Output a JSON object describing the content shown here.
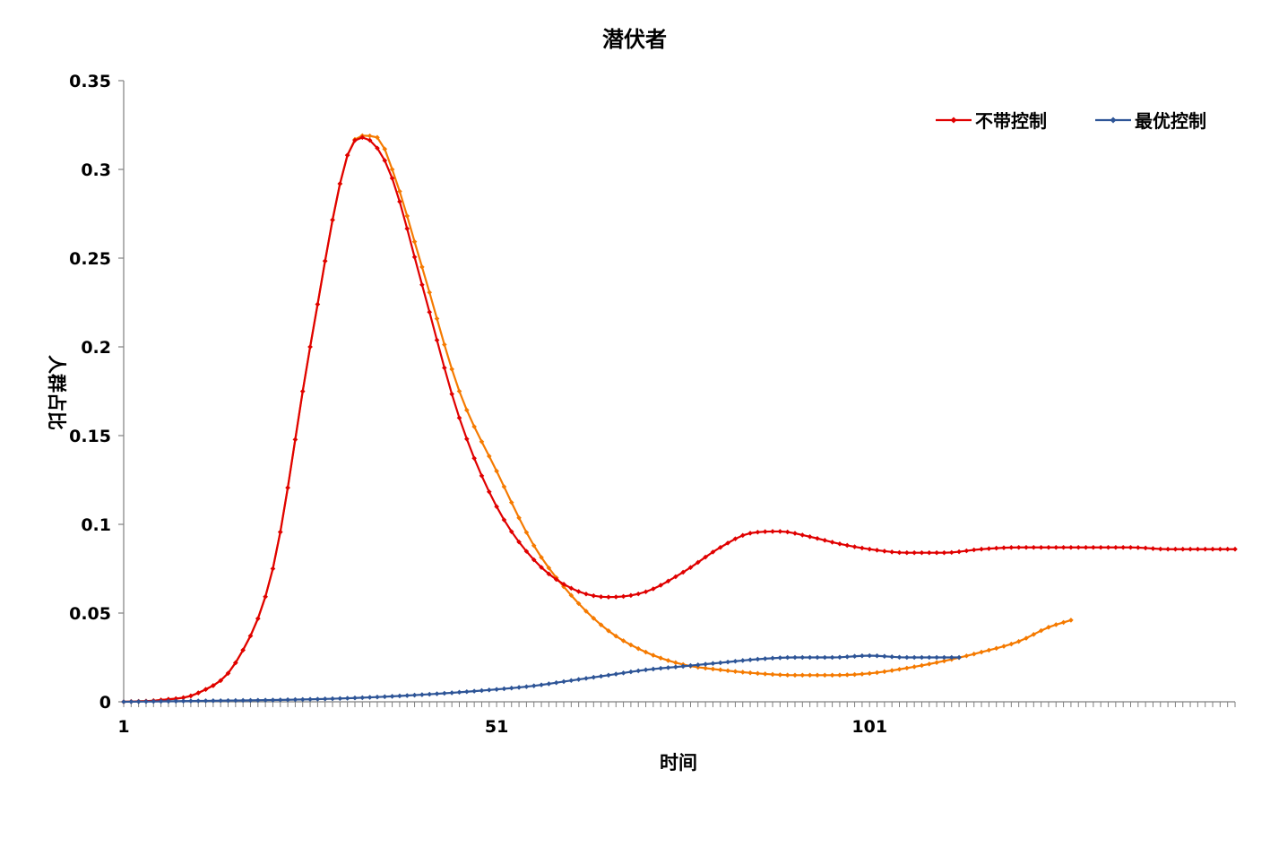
{
  "chart_data": {
    "type": "line",
    "title": "潜伏者",
    "xlabel": "时间",
    "ylabel": "人群占比",
    "xlim": [
      1,
      150
    ],
    "ylim": [
      0,
      0.35
    ],
    "x_tick_labels": [
      {
        "value": 1,
        "label": "1"
      },
      {
        "value": 51,
        "label": "51"
      },
      {
        "value": 101,
        "label": "101"
      }
    ],
    "y_tick_labels": [
      {
        "value": 0,
        "label": "0"
      },
      {
        "value": 0.05,
        "label": "0.05"
      },
      {
        "value": 0.1,
        "label": "0.1"
      },
      {
        "value": 0.15,
        "label": "0.15"
      },
      {
        "value": 0.2,
        "label": "0.2"
      },
      {
        "value": 0.25,
        "label": "0.25"
      },
      {
        "value": 0.3,
        "label": "0.3"
      },
      {
        "value": 0.35,
        "label": "0.35"
      }
    ],
    "grid": false,
    "legend_position": "top-right",
    "legend": [
      "不带控制",
      "最优控制"
    ],
    "series": [
      {
        "name": "不带控制",
        "color": "#E00000",
        "x": [
          1,
          6,
          11,
          16,
          21,
          26,
          31,
          33,
          35,
          37,
          41,
          46,
          51,
          56,
          61,
          66,
          71,
          76,
          81,
          85,
          89,
          93,
          97,
          101,
          106,
          111,
          116,
          121,
          126,
          131,
          136,
          141,
          146,
          150
        ],
        "y": [
          0,
          0.001,
          0.005,
          0.022,
          0.075,
          0.2,
          0.308,
          0.318,
          0.312,
          0.295,
          0.235,
          0.16,
          0.11,
          0.08,
          0.064,
          0.059,
          0.062,
          0.073,
          0.087,
          0.095,
          0.096,
          0.093,
          0.089,
          0.086,
          0.084,
          0.084,
          0.086,
          0.087,
          0.087,
          0.087,
          0.087,
          0.086,
          0.086,
          0.086
        ]
      },
      {
        "name": "最优控制",
        "color": "#2E5597",
        "x": [
          1,
          11,
          21,
          31,
          41,
          51,
          56,
          61,
          66,
          71,
          76,
          81,
          86,
          91,
          96,
          101,
          106,
          113
        ],
        "y": [
          0,
          0.0005,
          0.001,
          0.002,
          0.004,
          0.007,
          0.009,
          0.012,
          0.015,
          0.018,
          0.02,
          0.022,
          0.024,
          0.025,
          0.025,
          0.026,
          0.025,
          0.025
        ]
      },
      {
        "name": "",
        "color": "#F57A00",
        "x": [
          1,
          6,
          11,
          16,
          21,
          26,
          31,
          33,
          35,
          37,
          41,
          46,
          51,
          56,
          61,
          66,
          71,
          76,
          81,
          86,
          91,
          96,
          101,
          106,
          111,
          116,
          121,
          125,
          128
        ],
        "y": [
          0,
          0.001,
          0.005,
          0.022,
          0.075,
          0.2,
          0.308,
          0.319,
          0.318,
          0.3,
          0.245,
          0.175,
          0.13,
          0.088,
          0.06,
          0.04,
          0.028,
          0.021,
          0.018,
          0.016,
          0.015,
          0.015,
          0.016,
          0.019,
          0.023,
          0.028,
          0.034,
          0.042,
          0.046
        ]
      }
    ]
  }
}
